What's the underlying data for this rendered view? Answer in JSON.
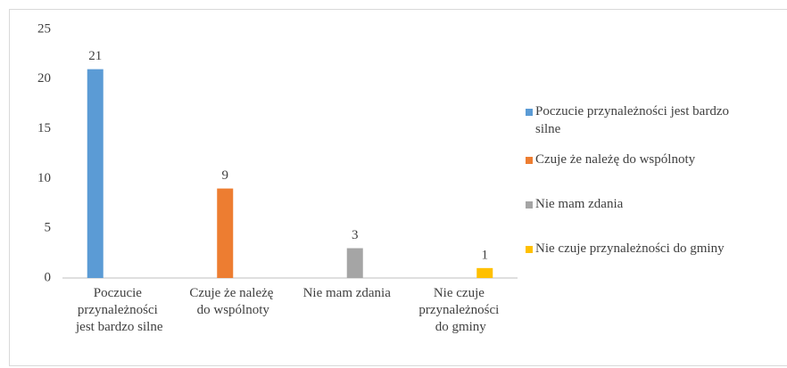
{
  "chart_data": {
    "type": "bar",
    "categories": [
      "Poczucie przynależności jest bardzo silne",
      "Czuje że należę do wspólnoty",
      "Nie mam zdania",
      "Nie czuje przynależności do gminy"
    ],
    "series": [
      {
        "name": "Poczucie przynależności jest bardzo silne",
        "color": "#5b9bd5",
        "values": [
          21,
          null,
          null,
          null
        ]
      },
      {
        "name": "Czuje że należę do wspólnoty",
        "color": "#ed7d31",
        "values": [
          null,
          9,
          null,
          null
        ]
      },
      {
        "name": "Nie mam zdania",
        "color": "#a5a5a5",
        "values": [
          null,
          null,
          3,
          null
        ]
      },
      {
        "name": "Nie czuje przynależności do gminy",
        "color": "#ffc000",
        "values": [
          null,
          null,
          null,
          1
        ]
      }
    ],
    "ylim": [
      0,
      25
    ],
    "yticks": [
      0,
      5,
      10,
      15,
      20,
      25
    ],
    "grid": false,
    "legend": "right"
  }
}
